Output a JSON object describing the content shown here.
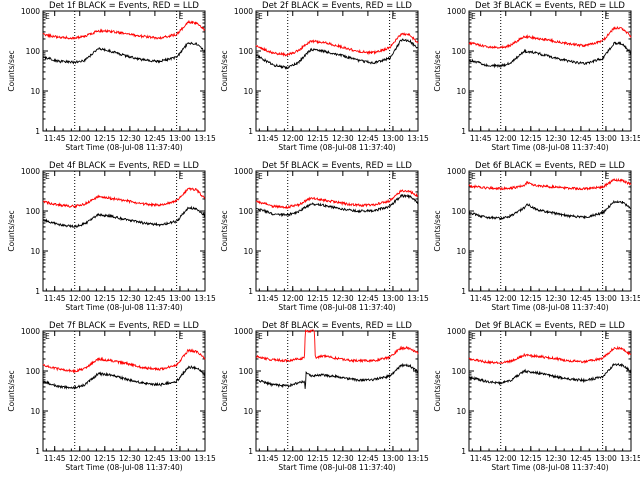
{
  "figure": {
    "colors": {
      "events": "#000000",
      "lld": "#ff0000",
      "axis": "#000000"
    }
  },
  "chart_data": [
    {
      "type": "line",
      "title": "Det 1f BLACK = Events, RED = LLD",
      "xlabel": "Start Time (08-Jul-08 11:37:40)",
      "ylabel": "Counts/sec",
      "yscale": "log",
      "ylim": [
        1,
        1000
      ],
      "yticks": [
        "1",
        "10",
        "100",
        "1000"
      ],
      "xticks": [
        "11:45",
        "12:00",
        "12:15",
        "12:30",
        "12:45",
        "13:00",
        "13:15"
      ],
      "xlim_minutes": [
        0,
        97
      ],
      "markers": [
        {
          "minute": 19,
          "label": ""
        },
        {
          "minute": 80,
          "label": ""
        }
      ],
      "corner_labels": [
        "E",
        "E"
      ],
      "grid": false,
      "series": [
        {
          "name": "LLD",
          "color": "#ff0000",
          "x": [
            0,
            10,
            19,
            25,
            33,
            40,
            50,
            60,
            70,
            80,
            87,
            92,
            97
          ],
          "y": [
            260,
            220,
            210,
            230,
            320,
            310,
            270,
            230,
            210,
            260,
            520,
            500,
            330
          ]
        },
        {
          "name": "Events",
          "color": "#000000",
          "x": [
            0,
            10,
            19,
            25,
            33,
            40,
            50,
            60,
            70,
            80,
            87,
            92,
            97
          ],
          "y": [
            70,
            55,
            52,
            58,
            115,
            100,
            75,
            60,
            55,
            70,
            160,
            150,
            95
          ]
        }
      ]
    },
    {
      "type": "line",
      "title": "Det 2f BLACK = Events, RED = LLD",
      "xlabel": "Start Time (08-Jul-08 11:37:40)",
      "ylabel": "Counts/sec",
      "yscale": "log",
      "ylim": [
        1,
        1000
      ],
      "yticks": [
        "1",
        "10",
        "100",
        "1000"
      ],
      "xticks": [
        "11:45",
        "12:00",
        "12:15",
        "12:30",
        "12:45",
        "13:00",
        "13:15"
      ],
      "xlim_minutes": [
        0,
        97
      ],
      "markers": [
        {
          "minute": 19,
          "label": ""
        },
        {
          "minute": 80,
          "label": ""
        }
      ],
      "corner_labels": [
        "E",
        "E"
      ],
      "grid": false,
      "series": [
        {
          "name": "LLD",
          "color": "#ff0000",
          "x": [
            0,
            10,
            19,
            25,
            33,
            40,
            50,
            60,
            70,
            80,
            87,
            92,
            97
          ],
          "y": [
            130,
            90,
            80,
            100,
            180,
            165,
            130,
            100,
            90,
            120,
            270,
            250,
            160
          ]
        },
        {
          "name": "Events",
          "color": "#000000",
          "x": [
            0,
            10,
            19,
            25,
            33,
            40,
            50,
            60,
            70,
            80,
            87,
            92,
            97
          ],
          "y": [
            80,
            45,
            38,
            50,
            110,
            100,
            80,
            60,
            50,
            65,
            190,
            180,
            110
          ]
        }
      ]
    },
    {
      "type": "line",
      "title": "Det 3f BLACK = Events, RED = LLD",
      "xlabel": "Start Time (08-Jul-08 11:37:40)",
      "ylabel": "Counts/sec",
      "yscale": "log",
      "ylim": [
        1,
        1000
      ],
      "yticks": [
        "1",
        "10",
        "100",
        "1000"
      ],
      "xticks": [
        "11:45",
        "12:00",
        "12:15",
        "12:30",
        "12:45",
        "13:00",
        "13:15"
      ],
      "xlim_minutes": [
        0,
        97
      ],
      "markers": [
        {
          "minute": 19,
          "label": ""
        },
        {
          "minute": 80,
          "label": ""
        }
      ],
      "corner_labels": [
        "E",
        "E"
      ],
      "grid": false,
      "series": [
        {
          "name": "LLD",
          "color": "#ff0000",
          "x": [
            0,
            10,
            19,
            25,
            33,
            40,
            50,
            60,
            70,
            80,
            87,
            92,
            97
          ],
          "y": [
            160,
            130,
            120,
            140,
            230,
            210,
            180,
            150,
            135,
            180,
            380,
            360,
            230
          ]
        },
        {
          "name": "Events",
          "color": "#000000",
          "x": [
            0,
            10,
            19,
            25,
            33,
            40,
            50,
            60,
            70,
            80,
            87,
            92,
            97
          ],
          "y": [
            60,
            45,
            42,
            50,
            100,
            90,
            70,
            55,
            48,
            65,
            160,
            150,
            90
          ]
        }
      ]
    },
    {
      "type": "line",
      "title": "Det 4f BLACK = Events, RED = LLD",
      "xlabel": "Start Time (08-Jul-08 11:37:40)",
      "ylabel": "Counts/sec",
      "yscale": "log",
      "ylim": [
        1,
        1000
      ],
      "yticks": [
        "1",
        "10",
        "100",
        "1000"
      ],
      "xticks": [
        "11:45",
        "12:00",
        "12:15",
        "12:30",
        "12:45",
        "13:00",
        "13:15"
      ],
      "xlim_minutes": [
        0,
        97
      ],
      "markers": [
        {
          "minute": 19,
          "label": ""
        },
        {
          "minute": 80,
          "label": ""
        }
      ],
      "corner_labels": [
        "E",
        "E"
      ],
      "grid": false,
      "series": [
        {
          "name": "LLD",
          "color": "#ff0000",
          "x": [
            0,
            10,
            19,
            25,
            33,
            40,
            50,
            60,
            70,
            80,
            87,
            92,
            97
          ],
          "y": [
            170,
            140,
            130,
            150,
            230,
            210,
            180,
            150,
            140,
            180,
            360,
            340,
            200
          ]
        },
        {
          "name": "Events",
          "color": "#000000",
          "x": [
            0,
            10,
            19,
            25,
            33,
            40,
            50,
            60,
            70,
            80,
            87,
            92,
            97
          ],
          "y": [
            60,
            45,
            40,
            48,
            80,
            75,
            60,
            50,
            45,
            55,
            120,
            115,
            75
          ]
        }
      ]
    },
    {
      "type": "line",
      "title": "Det 5f BLACK = Events, RED = LLD",
      "xlabel": "Start Time (08-Jul-08 11:37:40)",
      "ylabel": "Counts/sec",
      "yscale": "log",
      "ylim": [
        1,
        1000
      ],
      "yticks": [
        "1",
        "10",
        "100",
        "1000"
      ],
      "xticks": [
        "11:45",
        "12:00",
        "12:15",
        "12:30",
        "12:45",
        "13:00",
        "13:15"
      ],
      "xlim_minutes": [
        0,
        97
      ],
      "markers": [
        {
          "minute": 19,
          "label": ""
        },
        {
          "minute": 80,
          "label": ""
        }
      ],
      "corner_labels": [
        "E",
        "E"
      ],
      "grid": false,
      "series": [
        {
          "name": "LLD",
          "color": "#ff0000",
          "x": [
            0,
            10,
            19,
            25,
            33,
            40,
            50,
            60,
            70,
            80,
            87,
            92,
            97
          ],
          "y": [
            180,
            130,
            125,
            140,
            210,
            190,
            160,
            140,
            140,
            180,
            320,
            310,
            230
          ]
        },
        {
          "name": "Events",
          "color": "#000000",
          "x": [
            0,
            10,
            19,
            25,
            33,
            40,
            50,
            60,
            70,
            80,
            87,
            92,
            97
          ],
          "y": [
            120,
            85,
            80,
            95,
            150,
            140,
            115,
            100,
            100,
            130,
            240,
            230,
            160
          ]
        }
      ]
    },
    {
      "type": "line",
      "title": "Det 6f BLACK = Events, RED = LLD",
      "xlabel": "Start Time (08-Jul-08 11:37:40)",
      "ylabel": "Counts/sec",
      "yscale": "log",
      "ylim": [
        1,
        1000
      ],
      "yticks": [
        "1",
        "10",
        "100",
        "1000"
      ],
      "xticks": [
        "11:45",
        "12:00",
        "12:15",
        "12:30",
        "12:45",
        "13:00",
        "13:15"
      ],
      "xlim_minutes": [
        0,
        97
      ],
      "markers": [
        {
          "minute": 19,
          "label": ""
        },
        {
          "minute": 80,
          "label": ""
        }
      ],
      "corner_labels": [
        "E",
        "E"
      ],
      "grid": false,
      "series": [
        {
          "name": "LLD",
          "color": "#ff0000",
          "x": [
            0,
            10,
            19,
            25,
            33,
            35,
            40,
            50,
            60,
            70,
            80,
            87,
            92,
            97
          ],
          "y": [
            420,
            380,
            360,
            370,
            430,
            520,
            430,
            400,
            370,
            360,
            400,
            600,
            580,
            460
          ]
        },
        {
          "name": "Events",
          "color": "#000000",
          "x": [
            0,
            10,
            19,
            25,
            33,
            35,
            40,
            50,
            60,
            70,
            80,
            87,
            92,
            97
          ],
          "y": [
            90,
            70,
            65,
            75,
            120,
            150,
            110,
            90,
            75,
            70,
            90,
            170,
            165,
            120
          ]
        }
      ]
    },
    {
      "type": "line",
      "title": "Det 7f BLACK = Events, RED = LLD",
      "xlabel": "Start Time (08-Jul-08 11:37:40)",
      "ylabel": "Counts/sec",
      "yscale": "log",
      "ylim": [
        1,
        1000
      ],
      "yticks": [
        "1",
        "10",
        "100",
        "1000"
      ],
      "xticks": [
        "11:45",
        "12:00",
        "12:15",
        "12:30",
        "12:45",
        "13:00",
        "13:15"
      ],
      "xlim_minutes": [
        0,
        97
      ],
      "markers": [
        {
          "minute": 19,
          "label": ""
        },
        {
          "minute": 80,
          "label": ""
        }
      ],
      "corner_labels": [
        "E",
        "E"
      ],
      "grid": false,
      "series": [
        {
          "name": "LLD",
          "color": "#ff0000",
          "x": [
            0,
            10,
            19,
            25,
            33,
            40,
            50,
            60,
            70,
            80,
            87,
            92,
            97
          ],
          "y": [
            140,
            110,
            100,
            115,
            200,
            185,
            155,
            120,
            110,
            140,
            330,
            310,
            200
          ]
        },
        {
          "name": "Events",
          "color": "#000000",
          "x": [
            0,
            10,
            19,
            25,
            33,
            40,
            50,
            60,
            70,
            80,
            87,
            92,
            97
          ],
          "y": [
            55,
            40,
            38,
            45,
            85,
            80,
            62,
            50,
            45,
            55,
            125,
            120,
            80
          ]
        }
      ]
    },
    {
      "type": "line",
      "title": "Det 8f BLACK = Events, RED = LLD",
      "xlabel": "Start Time (08-Jul-08 11:37:40)",
      "ylabel": "Counts/sec",
      "yscale": "log",
      "ylim": [
        1,
        1000
      ],
      "yticks": [
        "1",
        "10",
        "100",
        "1000"
      ],
      "xticks": [
        "11:45",
        "12:00",
        "12:15",
        "12:30",
        "12:45",
        "13:00",
        "13:15"
      ],
      "xlim_minutes": [
        0,
        97
      ],
      "markers": [
        {
          "minute": 19,
          "label": ""
        },
        {
          "minute": 80,
          "label": ""
        }
      ],
      "corner_labels": [
        "E",
        "E"
      ],
      "grid": false,
      "series": [
        {
          "name": "LLD",
          "color": "#ff0000",
          "x": [
            0,
            10,
            19,
            25,
            29,
            29.5,
            35,
            35.5,
            40,
            50,
            60,
            70,
            80,
            87,
            92,
            97
          ],
          "y": [
            230,
            190,
            180,
            200,
            210,
            1000,
            1000,
            210,
            240,
            200,
            180,
            180,
            220,
            380,
            370,
            280
          ]
        },
        {
          "name": "Events",
          "color": "#000000",
          "x": [
            0,
            10,
            19,
            25,
            29,
            29.5,
            30,
            33,
            40,
            50,
            60,
            70,
            80,
            87,
            92,
            97
          ],
          "y": [
            60,
            45,
            42,
            50,
            55,
            30,
            90,
            75,
            80,
            70,
            60,
            60,
            75,
            140,
            135,
            95
          ]
        }
      ]
    },
    {
      "type": "line",
      "title": "Det 9f BLACK = Events, RED = LLD",
      "xlabel": "Start Time (08-Jul-08 11:37:40)",
      "ylabel": "Counts/sec",
      "yscale": "log",
      "ylim": [
        1,
        1000
      ],
      "yticks": [
        "1",
        "10",
        "100",
        "1000"
      ],
      "xticks": [
        "11:45",
        "12:00",
        "12:15",
        "12:30",
        "12:45",
        "13:00",
        "13:15"
      ],
      "xlim_minutes": [
        0,
        97
      ],
      "markers": [
        {
          "minute": 19,
          "label": ""
        },
        {
          "minute": 80,
          "label": ""
        }
      ],
      "corner_labels": [
        "E",
        "E"
      ],
      "grid": false,
      "series": [
        {
          "name": "LLD",
          "color": "#ff0000",
          "x": [
            0,
            10,
            19,
            25,
            33,
            40,
            50,
            60,
            70,
            80,
            87,
            92,
            97
          ],
          "y": [
            200,
            170,
            160,
            175,
            250,
            235,
            210,
            180,
            170,
            210,
            380,
            360,
            250
          ]
        },
        {
          "name": "Events",
          "color": "#000000",
          "x": [
            0,
            10,
            19,
            25,
            33,
            40,
            50,
            60,
            70,
            80,
            87,
            92,
            97
          ],
          "y": [
            70,
            55,
            50,
            58,
            100,
            92,
            75,
            62,
            58,
            72,
            150,
            140,
            95
          ]
        }
      ]
    }
  ]
}
